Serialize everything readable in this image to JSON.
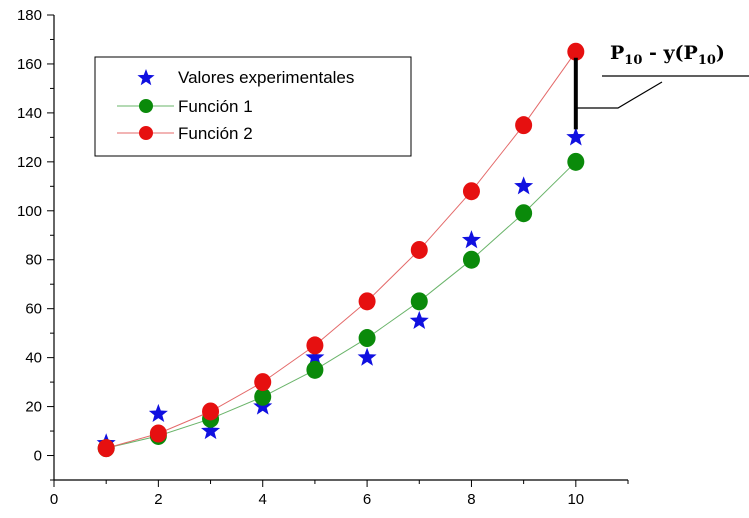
{
  "chart_data": {
    "type": "scatter",
    "xlim": [
      0,
      11
    ],
    "ylim": [
      -10,
      180
    ],
    "x_ticks": [
      0,
      2,
      4,
      6,
      8,
      10
    ],
    "y_ticks": [
      0,
      20,
      40,
      60,
      80,
      100,
      120,
      140,
      160,
      180
    ],
    "grid": false,
    "legend_position": "upper-left",
    "series": [
      {
        "name": "Valores experimentales",
        "marker": "star",
        "color": "#1010e0",
        "line": false,
        "x": [
          1,
          2,
          3,
          4,
          5,
          6,
          7,
          8,
          9,
          10
        ],
        "y": [
          5,
          17,
          10,
          20,
          40,
          40,
          55,
          88,
          110,
          130
        ]
      },
      {
        "name": "Función 1",
        "marker": "circle",
        "color": "#0a8a0a",
        "line_color": "#6ab46a",
        "line": true,
        "x": [
          1,
          2,
          3,
          4,
          5,
          6,
          7,
          8,
          9,
          10
        ],
        "y": [
          3,
          8,
          15,
          24,
          35,
          48,
          63,
          80,
          99,
          120
        ]
      },
      {
        "name": "Función 2",
        "marker": "circle",
        "color": "#e61010",
        "line_color": "#e46a6a",
        "line": true,
        "x": [
          1,
          2,
          3,
          4,
          5,
          6,
          7,
          8,
          9,
          10
        ],
        "y": [
          3,
          9,
          18,
          30,
          45,
          63,
          84,
          108,
          135,
          165
        ]
      }
    ],
    "annotation": {
      "text_main_1": "P",
      "text_sub_1": "10",
      "text_main_2": " - y(P",
      "text_sub_2": "10",
      "text_main_3": ")",
      "x": 10,
      "y_from": 130,
      "y_to": 165
    }
  }
}
